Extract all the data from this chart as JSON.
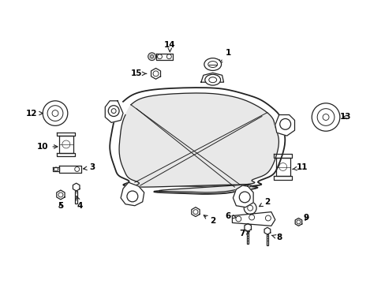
{
  "bg_color": "#ffffff",
  "line_color": "#222222",
  "label_color": "#000000",
  "fig_width": 4.89,
  "fig_height": 3.6,
  "dpi": 100
}
